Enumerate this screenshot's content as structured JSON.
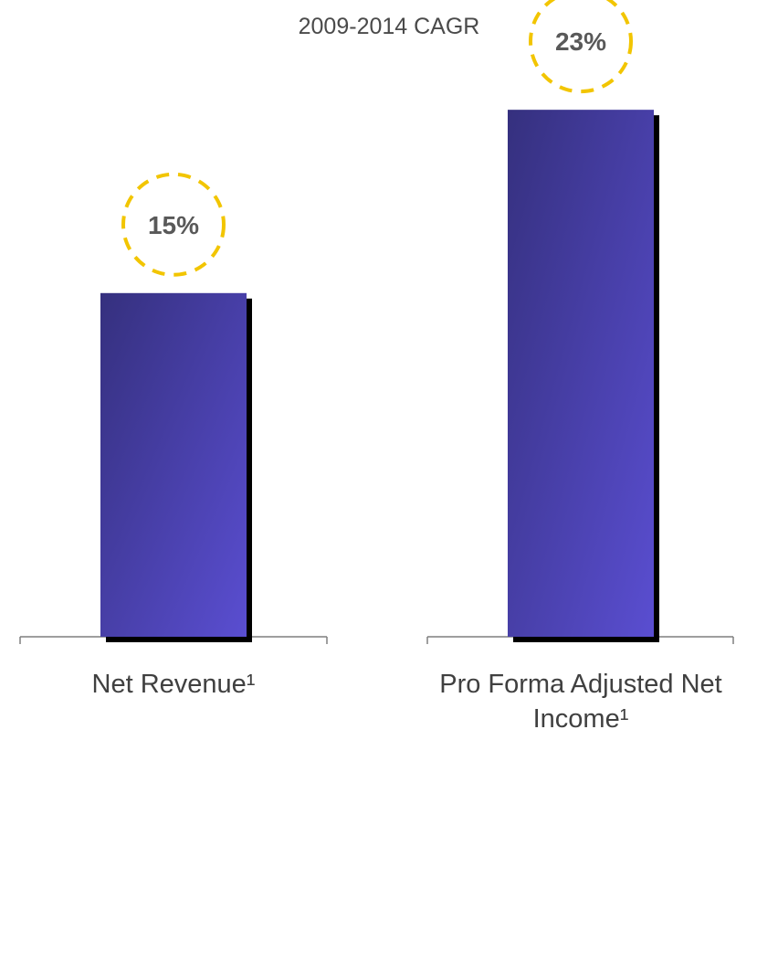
{
  "chart_data": {
    "type": "bar",
    "title": "2009-2014 CAGR",
    "categories": [
      "Net Revenue¹",
      "Pro Forma Adjusted Net Income¹"
    ],
    "category_lines": [
      [
        "Net Revenue¹"
      ],
      [
        "Pro Forma Adjusted Net",
        "Income¹"
      ]
    ],
    "values": [
      15,
      23
    ],
    "value_labels": [
      "15%",
      "23%"
    ],
    "ylim": [
      0,
      25
    ],
    "grid": false,
    "legend": "none",
    "colors": {
      "bar_dark": "#35307e",
      "bar_light": "#5a4ed1",
      "shadow": "#000000",
      "label_circle": "#f2c500",
      "axis": "#7f7f7f"
    }
  }
}
